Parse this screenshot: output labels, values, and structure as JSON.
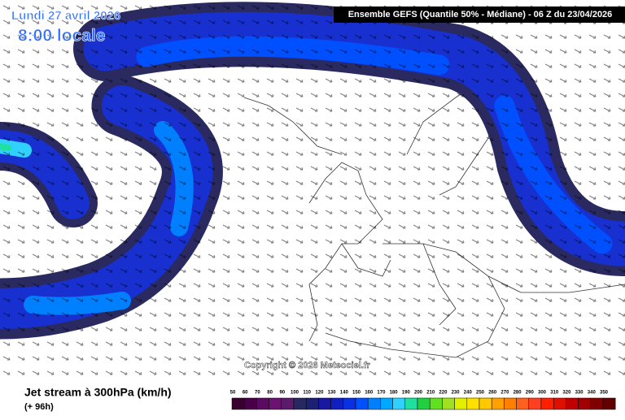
{
  "header": {
    "date": "Lundi 27 avril 2026",
    "time": "8:00 locale",
    "model": "Ensemble GEFS  (Quantile 50% - Médiane) - 06 Z du 23/04/2026",
    "copyright": "Copyright © 2026 Meteociel.fr"
  },
  "footer": {
    "title": "Jet stream à 300hPa (km/h)",
    "lead": "(+ 96h)"
  },
  "legend": {
    "labels": [
      50,
      60,
      70,
      80,
      90,
      100,
      110,
      120,
      130,
      140,
      150,
      160,
      170,
      180,
      190,
      200,
      210,
      220,
      230,
      240,
      250,
      260,
      270,
      280,
      290,
      300,
      310,
      320,
      330,
      340,
      350
    ],
    "colors": [
      "#3a0030",
      "#4a0048",
      "#5a0a60",
      "#6a1470",
      "#5a1c6a",
      "#282860",
      "#1c2070",
      "#1818a0",
      "#1020c0",
      "#0a30e0",
      "#0050ff",
      "#0080ff",
      "#00a8ff",
      "#30d0ff",
      "#20e0a0",
      "#20d040",
      "#60e020",
      "#a0e020",
      "#e0f000",
      "#ffe000",
      "#ffc800",
      "#ffa000",
      "#ff8000",
      "#ff6020",
      "#ff4020",
      "#ff2000",
      "#e01000",
      "#c00000",
      "#a00000",
      "#800000",
      "#600000"
    ]
  }
}
